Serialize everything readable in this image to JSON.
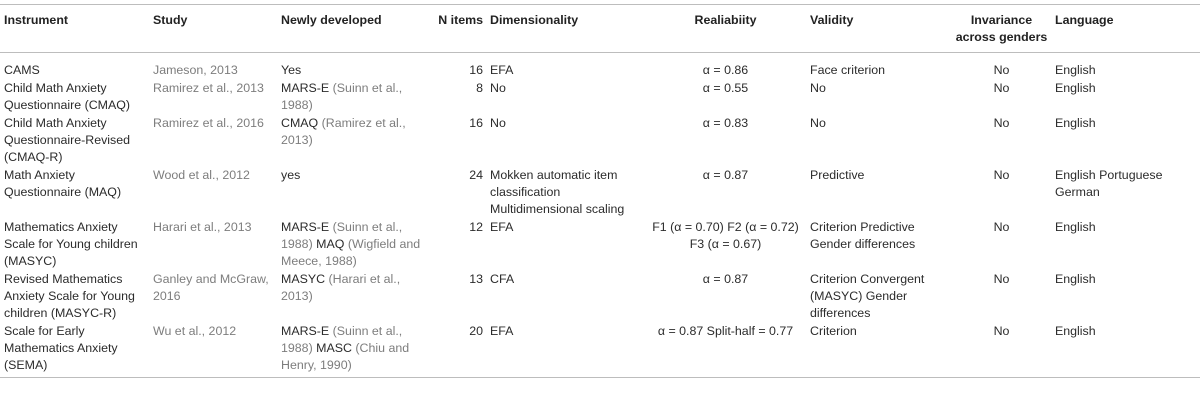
{
  "headers": {
    "instrument": "Instrument",
    "study": "Study",
    "newly": "Newly developed",
    "nitems": "N items",
    "dimensionality": "Dimensionality",
    "reliability": "Realiabiity",
    "validity": "Validity",
    "invariance": "Invariance across genders",
    "language": "Language"
  },
  "rows": [
    {
      "instrument": "CAMS",
      "study": "Jameson, 2013",
      "newly_main": "Yes",
      "newly_ref": "",
      "newly_ref2": "",
      "newly_tail": "",
      "nitems": "16",
      "dimensionality": "EFA",
      "reliability": "α = 0.86",
      "validity": "Face criterion",
      "invariance": "No",
      "language": "English"
    },
    {
      "instrument": "Child Math Anxiety Questionnaire (CMAQ)",
      "study": "Ramirez et al., 2013",
      "newly_main": "MARS-E",
      "newly_ref": "(Suinn et al., 1988)",
      "newly_ref2": "",
      "newly_tail": "",
      "nitems": "8",
      "dimensionality": "No",
      "reliability": "α = 0.55",
      "validity": "No",
      "invariance": "No",
      "language": "English"
    },
    {
      "instrument": "Child Math Anxiety Questionnaire-Revised (CMAQ-R)",
      "study": "Ramirez et al., 2016",
      "newly_main": "CMAQ",
      "newly_ref": "(Ramirez et al., 2013)",
      "newly_ref2": "",
      "newly_tail": "",
      "nitems": "16",
      "dimensionality": "No",
      "reliability": "α = 0.83",
      "validity": "No",
      "invariance": "No",
      "language": "English"
    },
    {
      "instrument": "Math Anxiety Questionnaire (MAQ)",
      "study": "Wood et al., 2012",
      "newly_main": "yes",
      "newly_ref": "",
      "newly_ref2": "",
      "newly_tail": "",
      "nitems": "24",
      "dimensionality": "Mokken automatic item classification Multidimensional scaling",
      "reliability": "α = 0.87",
      "validity": "Predictive",
      "invariance": "No",
      "language": "English Portuguese German"
    },
    {
      "instrument": "Mathematics Anxiety Scale for Young children (MASYC)",
      "study": "Harari et al., 2013",
      "newly_main": "MARS-E",
      "newly_ref": "(Suinn et al., 1988)",
      "newly_tail": "MAQ",
      "newly_ref2": "(Wigfield and Meece, 1988)",
      "nitems": "12",
      "dimensionality": "EFA",
      "reliability": "F1 (α = 0.70) F2 (α = 0.72) F3 (α = 0.67)",
      "validity": "Criterion Predictive Gender differences",
      "invariance": "No",
      "language": "English"
    },
    {
      "instrument": "Revised Mathematics Anxiety Scale for Young children (MASYC-R)",
      "study": "Ganley and McGraw, 2016",
      "newly_main": "MASYC",
      "newly_ref": "(Harari et al., 2013)",
      "newly_ref2": "",
      "newly_tail": "",
      "nitems": "13",
      "dimensionality": "CFA",
      "reliability": "α = 0.87",
      "validity": "Criterion Convergent (MASYC) Gender differences",
      "invariance": "No",
      "language": "English"
    },
    {
      "instrument": "Scale for Early Mathematics Anxiety (SEMA)",
      "study": "Wu et al., 2012",
      "newly_main": "MARS-E",
      "newly_ref": "(Suinn et al., 1988)",
      "newly_tail": "MASC",
      "newly_ref2": "(Chiu and Henry, 1990)",
      "nitems": "20",
      "dimensionality": "EFA",
      "reliability": "α = 0.87 Split-half = 0.77",
      "validity": "Criterion",
      "invariance": "No",
      "language": "English"
    }
  ]
}
